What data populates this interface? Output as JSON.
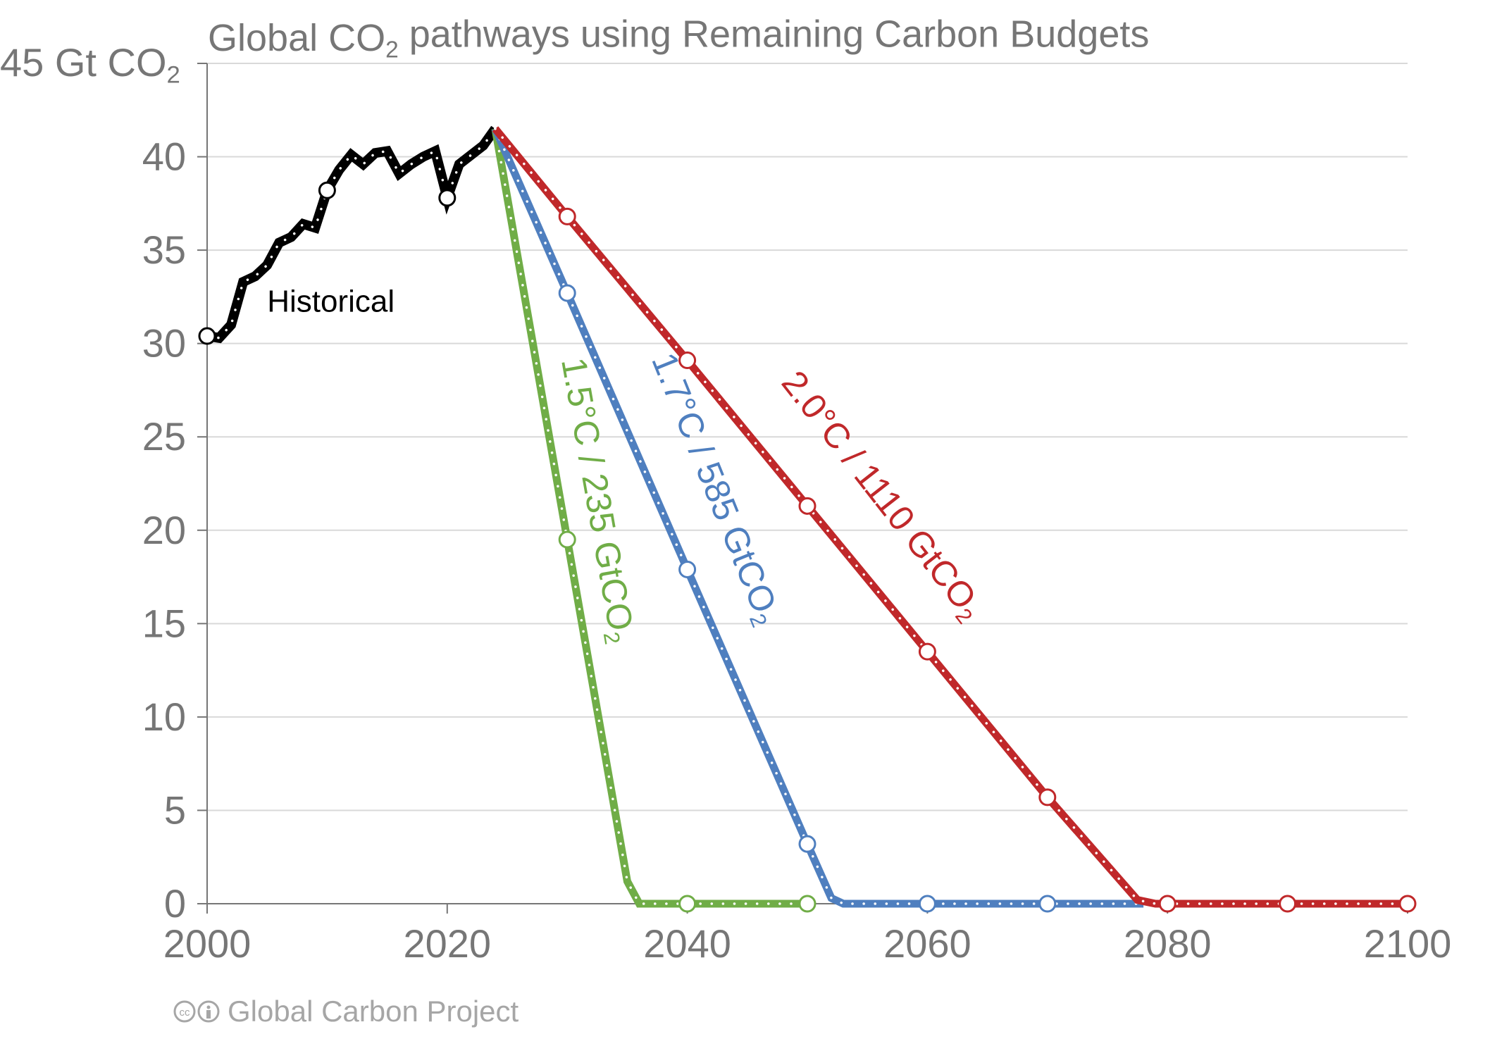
{
  "chart_data": {
    "type": "line",
    "title": "Global CO₂ pathways using Remaining Carbon Budgets",
    "ylabel": "45 Gt CO₂",
    "xlim": [
      2000,
      2100
    ],
    "ylim": [
      0,
      45
    ],
    "x_ticks": [
      2000,
      2020,
      2040,
      2060,
      2080,
      2100
    ],
    "y_ticks": [
      0,
      5,
      10,
      15,
      20,
      25,
      30,
      35,
      40
    ],
    "grid": "horizontal",
    "colors": {
      "historical": "#000000",
      "p15": "#70ad47",
      "p17": "#4f7fbf",
      "p20": "#c0282a",
      "axis": "#767676",
      "grid": "#d9d9d9"
    },
    "series": [
      {
        "name": "Historical",
        "color": "#000000",
        "x": [
          2000,
          2001,
          2002,
          2003,
          2004,
          2005,
          2006,
          2007,
          2008,
          2009,
          2010,
          2011,
          2012,
          2013,
          2014,
          2015,
          2016,
          2017,
          2018,
          2019,
          2020,
          2021,
          2022,
          2023,
          2024
        ],
        "y": [
          30.4,
          30.3,
          31.0,
          33.3,
          33.6,
          34.2,
          35.4,
          35.7,
          36.4,
          36.2,
          38.2,
          39.3,
          40.1,
          39.6,
          40.2,
          40.3,
          39.1,
          39.6,
          40.0,
          40.3,
          37.8,
          39.6,
          40.1,
          40.6,
          41.5
        ],
        "markers_x": [
          2000,
          2010,
          2020
        ],
        "markers_y": [
          30.4,
          38.2,
          37.8
        ]
      },
      {
        "name": "1.5°C / 235 GtCO₂",
        "color": "#70ad47",
        "x": [
          2024,
          2030,
          2035,
          2036,
          2040,
          2050
        ],
        "y": [
          41.5,
          19.5,
          1.2,
          0,
          0,
          0
        ],
        "markers_x": [
          2030,
          2040,
          2050
        ],
        "markers_y": [
          19.5,
          0,
          0
        ]
      },
      {
        "name": "1.7°C / 585 GtCO₂",
        "color": "#4f7fbf",
        "x": [
          2024,
          2030,
          2040,
          2050,
          2052,
          2053,
          2060,
          2070,
          2078
        ],
        "y": [
          41.5,
          32.7,
          17.9,
          3.2,
          0.3,
          0,
          0,
          0,
          0
        ],
        "markers_x": [
          2030,
          2040,
          2050,
          2060,
          2070
        ],
        "markers_y": [
          32.7,
          17.9,
          3.2,
          0,
          0
        ]
      },
      {
        "name": "2.0°C / 1110 GtCO₂",
        "color": "#c0282a",
        "x": [
          2024,
          2030,
          2040,
          2050,
          2060,
          2070,
          2077.5,
          2079,
          2080,
          2090,
          2100
        ],
        "y": [
          41.5,
          36.8,
          29.1,
          21.3,
          13.5,
          5.7,
          0.2,
          0,
          0,
          0,
          0
        ],
        "markers_x": [
          2030,
          2040,
          2050,
          2060,
          2070,
          2080,
          2090,
          2100
        ],
        "markers_y": [
          36.8,
          29.1,
          21.3,
          13.5,
          5.7,
          0,
          0,
          0
        ]
      }
    ],
    "annotations": [
      {
        "text": "Historical",
        "x": 2005,
        "y": 31.7,
        "color": "#000000",
        "angle": 0
      },
      {
        "text": "1.5°C / 235 GtCO₂",
        "x": 2031.6,
        "y": 21.5,
        "color": "#70ad47",
        "angle": 80
      },
      {
        "text": "1.7°C / 585 GtCO₂",
        "x": 2041.5,
        "y": 22.0,
        "color": "#4f7fbf",
        "angle": 68
      },
      {
        "text": "2.0°C / 1110 GtCO₂",
        "x": 2055.5,
        "y": 21.5,
        "color": "#c0282a",
        "angle": 52
      }
    ],
    "credit": "Global Carbon Project",
    "credit_icons": [
      "cc-icon",
      "attribution-icon"
    ]
  }
}
